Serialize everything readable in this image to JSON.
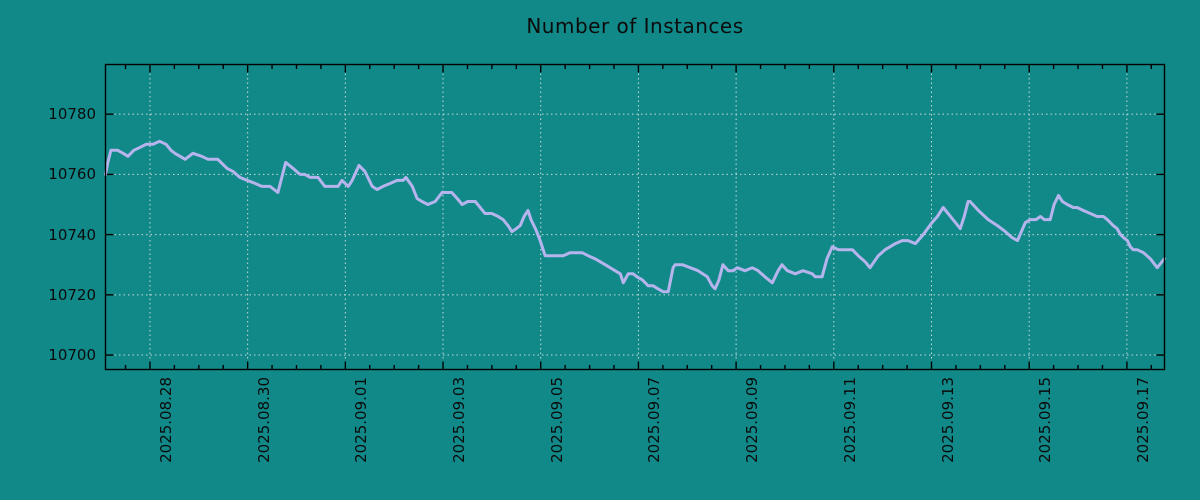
{
  "chart_data": {
    "type": "line",
    "title": "Number of Instances",
    "x_axis": {
      "unit": "days since 2025-08-27 00:00",
      "xlim": [
        0.09,
        21.77
      ],
      "major_tick_day_offsets": [
        1,
        3,
        5,
        7,
        9,
        11,
        13,
        15,
        17,
        19,
        21
      ],
      "major_tick_labels": [
        "2025.08.28",
        "2025.08.30",
        "2025.09.01",
        "2025.09.03",
        "2025.09.05",
        "2025.09.07",
        "2025.09.09",
        "2025.09.11",
        "2025.09.13",
        "2025.09.15",
        "2025.09.17"
      ],
      "minor_tick_step_days": 0.5,
      "label_rotation_deg": 90
    },
    "y_axis": {
      "ylim": [
        10695.2,
        10796.5
      ],
      "tick_values": [
        10700,
        10720,
        10740,
        10760,
        10780
      ],
      "tick_labels": [
        "10700",
        "10720",
        "10740",
        "10760",
        "10780"
      ]
    },
    "grid": {
      "visible": true,
      "style": "dotted",
      "at": "major-ticks"
    },
    "legend": null,
    "series": [
      {
        "name": "Number of Instances",
        "color": "#b6b4ec",
        "points": [
          [
            0.09,
            10760
          ],
          [
            0.14,
            10764
          ],
          [
            0.2,
            10768
          ],
          [
            0.34,
            10768
          ],
          [
            0.45,
            10767
          ],
          [
            0.55,
            10766
          ],
          [
            0.67,
            10768
          ],
          [
            0.8,
            10769
          ],
          [
            0.92,
            10770
          ],
          [
            1.06,
            10770
          ],
          [
            1.2,
            10771
          ],
          [
            1.33,
            10770
          ],
          [
            1.43,
            10768
          ],
          [
            1.51,
            10767
          ],
          [
            1.72,
            10765
          ],
          [
            1.88,
            10767
          ],
          [
            2.06,
            10766
          ],
          [
            2.19,
            10765
          ],
          [
            2.39,
            10765
          ],
          [
            2.58,
            10762
          ],
          [
            2.7,
            10761
          ],
          [
            2.84,
            10759
          ],
          [
            2.99,
            10758
          ],
          [
            3.15,
            10757
          ],
          [
            3.29,
            10756
          ],
          [
            3.46,
            10756
          ],
          [
            3.62,
            10754
          ],
          [
            3.78,
            10764
          ],
          [
            3.93,
            10762
          ],
          [
            4.07,
            10760
          ],
          [
            4.17,
            10760
          ],
          [
            4.28,
            10759
          ],
          [
            4.44,
            10759
          ],
          [
            4.58,
            10756
          ],
          [
            4.73,
            10756
          ],
          [
            4.85,
            10756
          ],
          [
            4.93,
            10758
          ],
          [
            5.06,
            10756
          ],
          [
            5.14,
            10758
          ],
          [
            5.28,
            10763
          ],
          [
            5.4,
            10761
          ],
          [
            5.55,
            10756
          ],
          [
            5.65,
            10755
          ],
          [
            5.77,
            10756
          ],
          [
            5.92,
            10757
          ],
          [
            6.06,
            10758
          ],
          [
            6.18,
            10758
          ],
          [
            6.24,
            10759
          ],
          [
            6.37,
            10756
          ],
          [
            6.47,
            10752
          ],
          [
            6.57,
            10751
          ],
          [
            6.69,
            10750
          ],
          [
            6.84,
            10751
          ],
          [
            6.98,
            10754
          ],
          [
            7.1,
            10754
          ],
          [
            7.18,
            10754
          ],
          [
            7.29,
            10752
          ],
          [
            7.39,
            10750
          ],
          [
            7.51,
            10751
          ],
          [
            7.66,
            10751
          ],
          [
            7.76,
            10749
          ],
          [
            7.86,
            10747
          ],
          [
            8.0,
            10747
          ],
          [
            8.13,
            10746
          ],
          [
            8.23,
            10745
          ],
          [
            8.33,
            10743
          ],
          [
            8.41,
            10741
          ],
          [
            8.5,
            10742
          ],
          [
            8.58,
            10743
          ],
          [
            8.66,
            10746
          ],
          [
            8.74,
            10748
          ],
          [
            8.8,
            10745
          ],
          [
            8.89,
            10742
          ],
          [
            8.99,
            10738
          ],
          [
            9.09,
            10733
          ],
          [
            9.19,
            10733
          ],
          [
            9.32,
            10733
          ],
          [
            9.46,
            10733
          ],
          [
            9.6,
            10734
          ],
          [
            9.72,
            10734
          ],
          [
            9.85,
            10734
          ],
          [
            9.97,
            10733
          ],
          [
            10.11,
            10732
          ],
          [
            10.32,
            10730
          ],
          [
            10.52,
            10728
          ],
          [
            10.63,
            10727
          ],
          [
            10.69,
            10724
          ],
          [
            10.79,
            10727
          ],
          [
            10.89,
            10727
          ],
          [
            10.97,
            10726
          ],
          [
            11.08,
            10725
          ],
          [
            11.2,
            10723
          ],
          [
            11.3,
            10723
          ],
          [
            11.4,
            10722
          ],
          [
            11.51,
            10721
          ],
          [
            11.61,
            10721
          ],
          [
            11.71,
            10729
          ],
          [
            11.75,
            10730
          ],
          [
            11.9,
            10730
          ],
          [
            12.06,
            10729
          ],
          [
            12.22,
            10728
          ],
          [
            12.41,
            10726
          ],
          [
            12.51,
            10723
          ],
          [
            12.57,
            10722
          ],
          [
            12.65,
            10725
          ],
          [
            12.73,
            10730
          ],
          [
            12.84,
            10728
          ],
          [
            12.94,
            10728
          ],
          [
            13.02,
            10729
          ],
          [
            13.18,
            10728
          ],
          [
            13.33,
            10729
          ],
          [
            13.45,
            10728
          ],
          [
            13.59,
            10726
          ],
          [
            13.74,
            10724
          ],
          [
            13.86,
            10728
          ],
          [
            13.94,
            10730
          ],
          [
            14.05,
            10728
          ],
          [
            14.21,
            10727
          ],
          [
            14.37,
            10728
          ],
          [
            14.56,
            10727
          ],
          [
            14.62,
            10726
          ],
          [
            14.76,
            10726
          ],
          [
            14.86,
            10732
          ],
          [
            14.97,
            10736
          ],
          [
            15.09,
            10735
          ],
          [
            15.23,
            10735
          ],
          [
            15.38,
            10735
          ],
          [
            15.5,
            10733
          ],
          [
            15.64,
            10731
          ],
          [
            15.74,
            10729
          ],
          [
            15.91,
            10733
          ],
          [
            16.05,
            10735
          ],
          [
            16.26,
            10737
          ],
          [
            16.4,
            10738
          ],
          [
            16.52,
            10738
          ],
          [
            16.67,
            10737
          ],
          [
            16.83,
            10740
          ],
          [
            17.01,
            10744
          ],
          [
            17.12,
            10746
          ],
          [
            17.24,
            10749
          ],
          [
            17.34,
            10747
          ],
          [
            17.49,
            10744
          ],
          [
            17.59,
            10742
          ],
          [
            17.67,
            10746
          ],
          [
            17.75,
            10751
          ],
          [
            17.79,
            10751
          ],
          [
            17.96,
            10748
          ],
          [
            18.16,
            10745
          ],
          [
            18.35,
            10743
          ],
          [
            18.51,
            10741
          ],
          [
            18.65,
            10739
          ],
          [
            18.76,
            10738
          ],
          [
            18.84,
            10741
          ],
          [
            18.92,
            10744
          ],
          [
            19.02,
            10745
          ],
          [
            19.14,
            10745
          ],
          [
            19.23,
            10746
          ],
          [
            19.31,
            10745
          ],
          [
            19.43,
            10745
          ],
          [
            19.51,
            10750
          ],
          [
            19.6,
            10753
          ],
          [
            19.68,
            10751
          ],
          [
            19.78,
            10750
          ],
          [
            19.9,
            10749
          ],
          [
            19.98,
            10749
          ],
          [
            20.11,
            10748
          ],
          [
            20.25,
            10747
          ],
          [
            20.39,
            10746
          ],
          [
            20.52,
            10746
          ],
          [
            20.6,
            10745
          ],
          [
            20.72,
            10743
          ],
          [
            20.8,
            10742
          ],
          [
            20.87,
            10740
          ],
          [
            20.93,
            10739
          ],
          [
            21.01,
            10738
          ],
          [
            21.07,
            10736
          ],
          [
            21.13,
            10735
          ],
          [
            21.21,
            10735
          ],
          [
            21.34,
            10734
          ],
          [
            21.48,
            10732
          ],
          [
            21.62,
            10729
          ],
          [
            21.77,
            10732
          ]
        ]
      }
    ]
  },
  "colors": {
    "background": "#118989",
    "line": "#b6b4ec",
    "grid": "#e8e8e8",
    "spine": "#000000",
    "text": "#0b0b0b"
  }
}
